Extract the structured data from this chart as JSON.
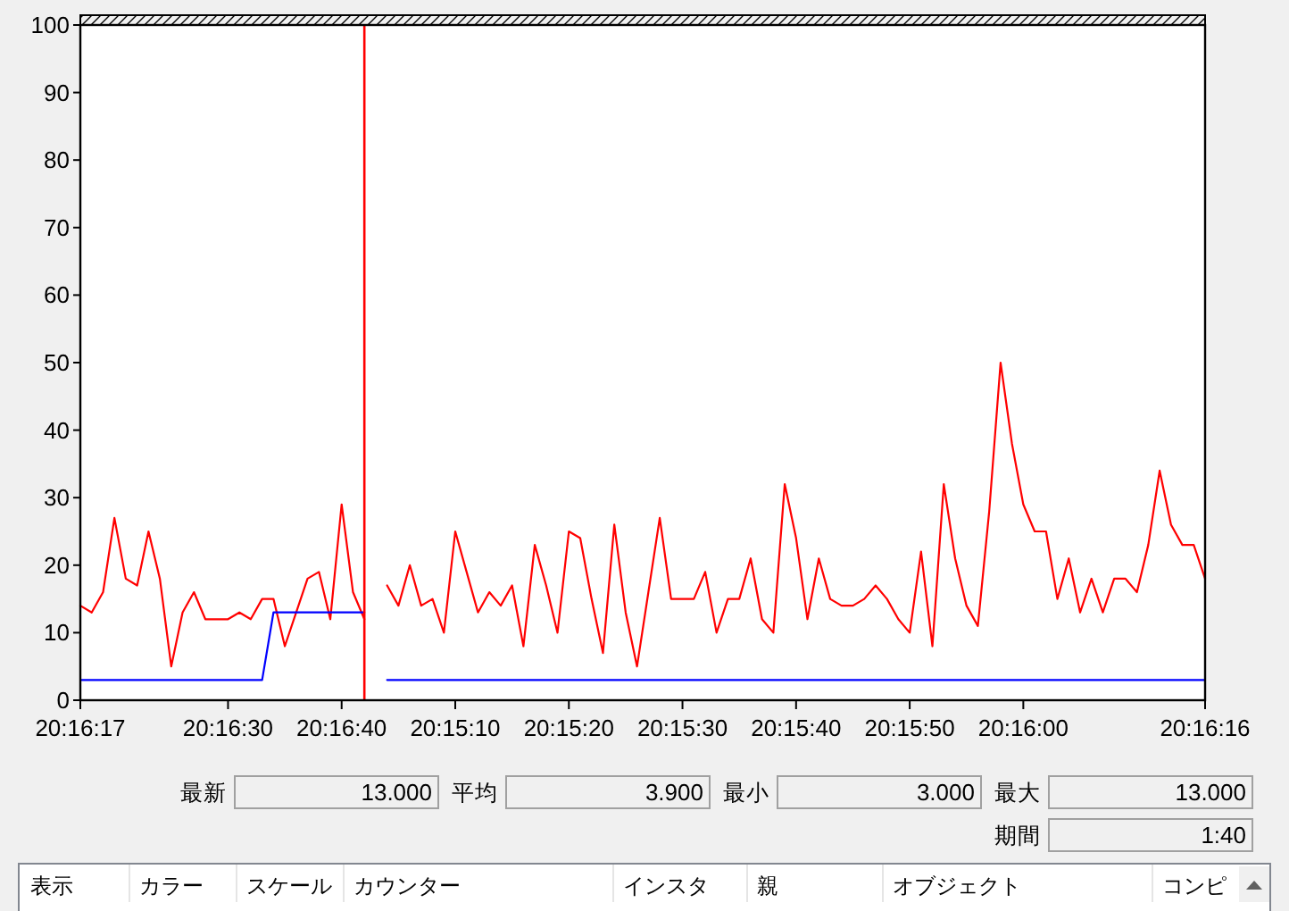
{
  "chart_data": [
    {
      "type": "line",
      "categories": [
        "20:16:17",
        null,
        null,
        null,
        null,
        null,
        null,
        null,
        null,
        null,
        null,
        null,
        null,
        "20:16:30",
        null,
        null,
        null,
        null,
        null,
        null,
        null,
        null,
        null,
        "20:16:40",
        null,
        null,
        null,
        null,
        null,
        null,
        null,
        null,
        null,
        "20:15:10",
        null,
        null,
        null,
        null,
        null,
        null,
        null,
        null,
        null,
        "20:15:20",
        null,
        null,
        null,
        null,
        null,
        null,
        null,
        null,
        null,
        "20:15:30",
        null,
        null,
        null,
        null,
        null,
        null,
        null,
        null,
        null,
        "20:15:40",
        null,
        null,
        null,
        null,
        null,
        null,
        null,
        null,
        null,
        "20:15:50",
        null,
        null,
        null,
        null,
        null,
        null,
        null,
        null,
        null,
        "20:16:00",
        null,
        null,
        null,
        null,
        null,
        null,
        null,
        null,
        null,
        null,
        null,
        null,
        null,
        null,
        null,
        "20:16:16"
      ],
      "series": [
        {
          "color": "#ff0000",
          "values": [
            14,
            13,
            16,
            27,
            18,
            17,
            25,
            18,
            5,
            13,
            16,
            12,
            12,
            12,
            13,
            12,
            15,
            15,
            8,
            13,
            18,
            19,
            12,
            29,
            16,
            12,
            null,
            17,
            14,
            20,
            14,
            15,
            10,
            25,
            19,
            13,
            16,
            14,
            17,
            8,
            23,
            17,
            10,
            25,
            24,
            15,
            7,
            26,
            13,
            5,
            16,
            27,
            15,
            15,
            15,
            19,
            10,
            15,
            15,
            21,
            12,
            10,
            32,
            24,
            12,
            21,
            15,
            14,
            14,
            15,
            17,
            15,
            12,
            10,
            22,
            8,
            32,
            21,
            14,
            11,
            28,
            50,
            38,
            29,
            25,
            25,
            15,
            21,
            13,
            18,
            13,
            18,
            18,
            16,
            23,
            34,
            26,
            23,
            23,
            18
          ]
        },
        {
          "color": "#0000ff",
          "values": [
            3,
            3,
            3,
            3,
            3,
            3,
            3,
            3,
            3,
            3,
            3,
            3,
            3,
            3,
            3,
            3,
            3,
            13,
            13,
            13,
            13,
            13,
            13,
            13,
            13,
            13,
            null,
            3,
            3,
            3,
            3,
            3,
            3,
            3,
            3,
            3,
            3,
            3,
            3,
            3,
            3,
            3,
            3,
            3,
            3,
            3,
            3,
            3,
            3,
            3,
            3,
            3,
            3,
            3,
            3,
            3,
            3,
            3,
            3,
            3,
            3,
            3,
            3,
            3,
            3,
            3,
            3,
            3,
            3,
            3,
            3,
            3,
            3,
            3,
            3,
            3,
            3,
            3,
            3,
            3,
            3,
            3,
            3,
            3,
            3,
            3,
            3,
            3,
            3,
            3,
            3,
            3,
            3,
            3,
            3,
            3,
            3,
            3,
            3,
            3
          ]
        }
      ],
      "ylim": [
        0,
        100
      ],
      "yticks": [
        0,
        10,
        20,
        30,
        40,
        50,
        60,
        70,
        80,
        90,
        100
      ]
    },
    {
      "type": "other",
      "annotations": [
        "最新",
        "13.000",
        "平均",
        "3.900",
        "最小",
        "3.000",
        "最大",
        "13.000",
        "期間",
        "1:40"
      ]
    },
    {
      "type": "other",
      "annotations": [
        "表示",
        "カラー",
        "スケール",
        "カウンター",
        "インスタ",
        "親",
        "オブジェクト",
        "コンピ"
      ]
    }
  ]
}
